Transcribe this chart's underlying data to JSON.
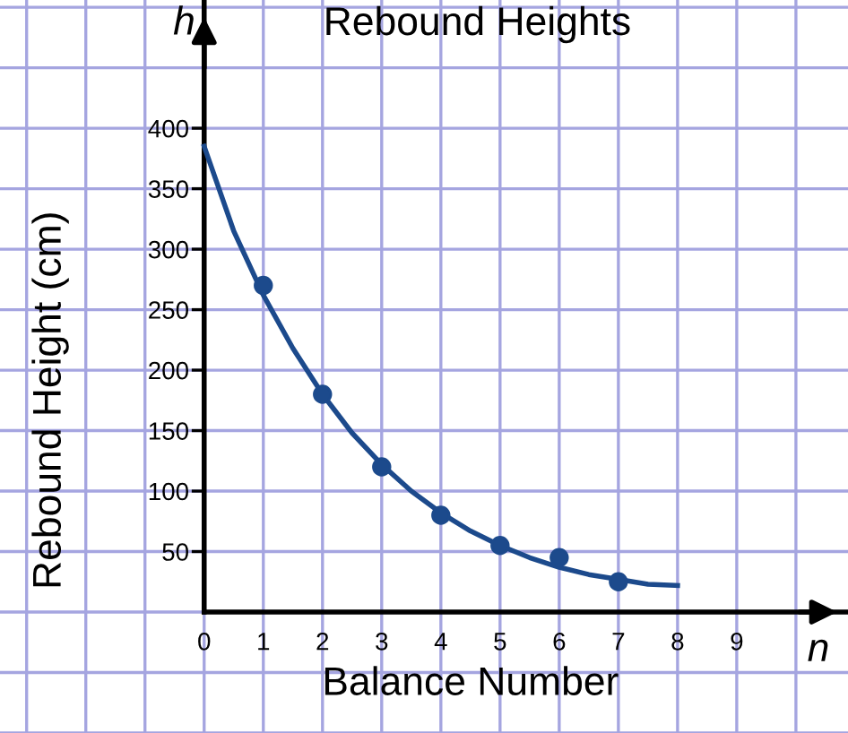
{
  "chart_data": {
    "type": "scatter",
    "title": "Rebound Heights",
    "xlabel": "Balance Number",
    "ylabel": "Rebound Height (cm)",
    "annotations": [
      "h",
      "n"
    ],
    "x": [
      1,
      2,
      3,
      4,
      5,
      6,
      7
    ],
    "series": [
      {
        "color": "#1c4a8c",
        "marker": "circle",
        "values": [
          270,
          180,
          120,
          80,
          55,
          45,
          25
        ]
      },
      {
        "type": "line",
        "marker": "none",
        "color": "#1c4a8c",
        "x": [
          0,
          0.5,
          1,
          1.5,
          2,
          2.5,
          3,
          3.5,
          4,
          4.5,
          5,
          5.5,
          6,
          6.5,
          7,
          7.5,
          8
        ],
        "values": [
          385,
          315,
          262,
          218,
          180,
          148,
          122,
          100,
          82,
          67,
          55,
          45,
          37,
          31,
          27,
          23,
          22
        ]
      }
    ],
    "xlim": [
      -3.45,
      10.88
    ],
    "ylim": [
      -100,
      506
    ],
    "xticks": [
      0,
      1,
      2,
      3,
      4,
      5,
      6,
      7,
      8,
      9
    ],
    "yticks": [
      50,
      100,
      150,
      200,
      250,
      300,
      350,
      400
    ],
    "grid": true
  }
}
